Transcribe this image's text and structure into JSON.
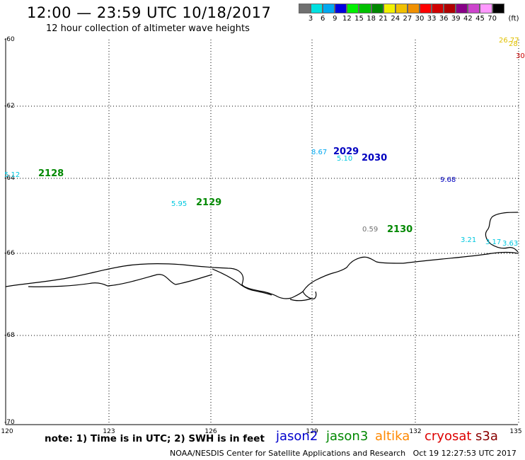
{
  "header": {
    "title": "12:00 — 23:59 UTC 10/18/2017",
    "subtitle": "12 hour collection of altimeter wave heights"
  },
  "colorbar": {
    "colors": [
      "#707070",
      "#00e0e0",
      "#00a8f0",
      "#0000e0",
      "#00f000",
      "#00c000",
      "#008800",
      "#f0f000",
      "#f0c000",
      "#f09000",
      "#ff0000",
      "#d00000",
      "#b00000",
      "#880088",
      "#cc44cc",
      "#ff99ff",
      "#000000"
    ],
    "labels": [
      "3",
      "6",
      "9",
      "12",
      "15",
      "18",
      "21",
      "24",
      "27",
      "30",
      "33",
      "36",
      "39",
      "42",
      "45",
      "70"
    ],
    "unit": "(ft)"
  },
  "axes": {
    "lat_labels": [
      "-60",
      "-62",
      "-64",
      "-66",
      "-68",
      "-70"
    ],
    "lon_labels": [
      "120",
      "123",
      "126",
      "129",
      "132",
      "135"
    ]
  },
  "observations": [
    {
      "text": "5.12",
      "color": "#00c8e0"
    },
    {
      "text": "5.95",
      "color": "#00c8e0"
    },
    {
      "text": "8.67",
      "color": "#00a8f0"
    },
    {
      "text": "5.10",
      "color": "#00c8e0"
    },
    {
      "text": "9.68",
      "color": "#0000c0"
    },
    {
      "text": "0.59",
      "color": "#707070"
    },
    {
      "text": "3.21",
      "color": "#00c8e0"
    },
    {
      "text": "3.17",
      "color": "#00c8e0"
    },
    {
      "text": "3.63",
      "color": "#00c8e0"
    },
    {
      "text": "26.77",
      "color": "#e0c000"
    },
    {
      "text": "28.",
      "color": "#e0c000"
    },
    {
      "text": "30",
      "color": "#cc0000"
    }
  ],
  "passes": [
    {
      "text": "2128",
      "color": "#008800"
    },
    {
      "text": "2129",
      "color": "#008800"
    },
    {
      "text": "2029",
      "color": "#0000c0"
    },
    {
      "text": "2030",
      "color": "#0000c0"
    },
    {
      "text": "2130",
      "color": "#008800"
    }
  ],
  "legend": {
    "note": "note: 1) Time is in UTC; 2) SWH is in feet",
    "satellites": [
      {
        "name": "jason2",
        "color": "#0000cc"
      },
      {
        "name": "jason3",
        "color": "#008800"
      },
      {
        "name": "altika",
        "color": "#ff8800"
      },
      {
        "name": "cryosat",
        "color": "#dd0000"
      },
      {
        "name": "s3a",
        "color": "#880000"
      }
    ]
  },
  "footer": {
    "credit": "NOAA/NESDIS Center for Satellite Applications and Research",
    "timestamp": "Oct 19 12:27:53 UTC 2017"
  }
}
